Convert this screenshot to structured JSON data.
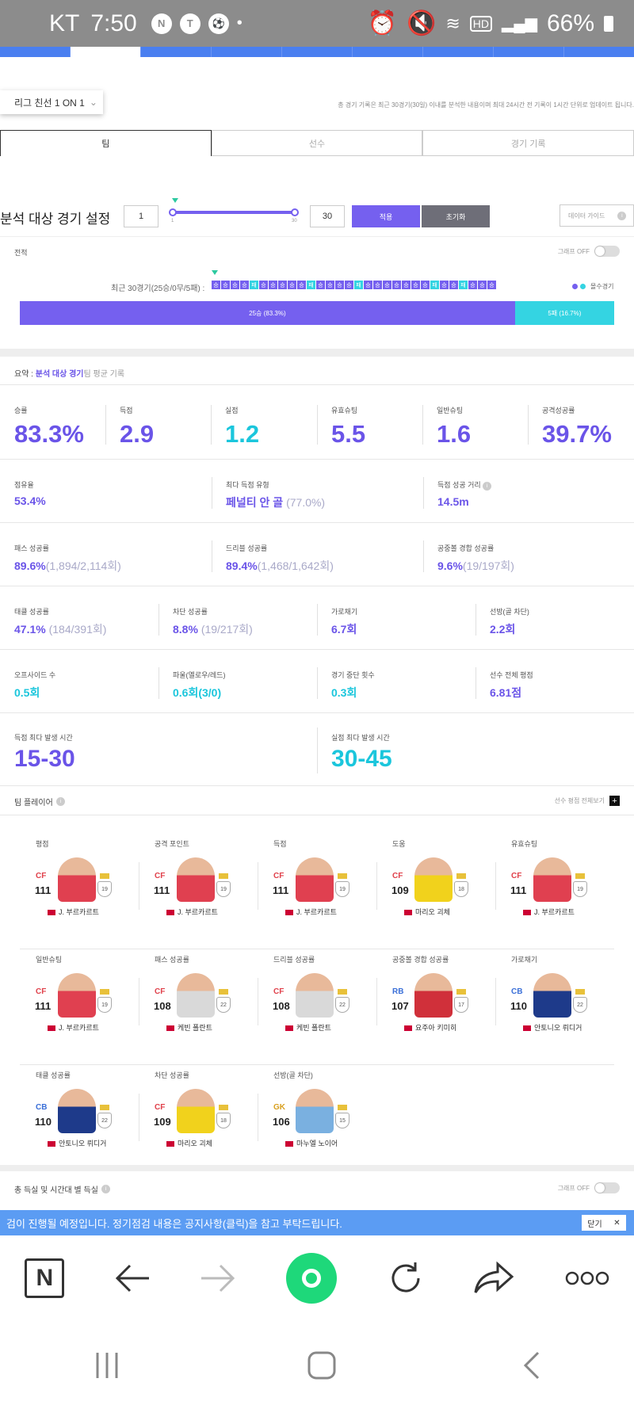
{
  "status_bar": {
    "carrier": "KT",
    "time": "7:50",
    "battery": "66%",
    "icons": [
      "naver-icon",
      "talk-icon",
      "soccer-icon",
      "alarm-icon",
      "mute-icon",
      "wifi-icon",
      "hd-icon",
      "signal-icon",
      "battery-icon"
    ]
  },
  "league_select": {
    "label": "리그 친선 1 ON 1"
  },
  "update_note": "총 경기 기록은 최근 30경기(30일) 이내를 분석한 내용이며 최대 24시간 전 기록이 1시간 단위로 업데이트 됩니다.",
  "tabs": [
    {
      "label": "팀"
    },
    {
      "label": "선수"
    },
    {
      "label": "경기 기록"
    }
  ],
  "settings": {
    "title": "분석 대상 경기 설정",
    "min_value": "1",
    "max_value": "30",
    "slider_min_label": "1",
    "slider_max_label": "30",
    "apply_label": "적용",
    "reset_label": "초기화",
    "guide_label": "데이터 가이드"
  },
  "record": {
    "section_label": "전적",
    "graph_toggle": "그래프 OFF",
    "recent_label": "최근 30경기(25승/0무/5패) :",
    "results": [
      "승",
      "승",
      "승",
      "승",
      "패",
      "승",
      "승",
      "승",
      "승",
      "승",
      "패",
      "승",
      "승",
      "승",
      "승",
      "패",
      "승",
      "승",
      "승",
      "승",
      "승",
      "승",
      "승",
      "패",
      "승",
      "승",
      "패",
      "승",
      "승",
      "승"
    ],
    "win_label": "25승 (83.3%)",
    "loss_label": "5패 (16.7%)",
    "legend": "몰수경기",
    "win_fraction": 0.833,
    "colors": {
      "win": "#7560ef",
      "loss": "#34d4e2"
    }
  },
  "summary": {
    "prefix": "요약 :",
    "highlight": "분석 대상 경기",
    "suffix": "팀 평균 기록"
  },
  "top_stats": [
    {
      "label": "승률",
      "value": "83.3%"
    },
    {
      "label": "득점",
      "value": "2.9"
    },
    {
      "label": "실점",
      "value": "1.2"
    },
    {
      "label": "유효슈팅",
      "value": "5.5"
    },
    {
      "label": "일반슈팅",
      "value": "1.6"
    },
    {
      "label": "공격성공률",
      "value": "39.7%"
    }
  ],
  "stats_row1": [
    {
      "label": "점유율",
      "value": "53.4%",
      "sub": ""
    },
    {
      "label": "최다 득점 유형",
      "value": "페널티 안 골",
      "sub": "(77.0%)"
    },
    {
      "label": "득점 성공 거리",
      "value": "14.5m",
      "sub": ""
    }
  ],
  "stats_row2": [
    {
      "label": "패스 성공률",
      "value": "89.6%",
      "sub": "(1,894/2,114회)"
    },
    {
      "label": "드리블 성공률",
      "value": "89.4%",
      "sub": "(1,468/1,642회)"
    },
    {
      "label": "공중볼 경합 성공률",
      "value": "9.6%",
      "sub": "(19/197회)"
    }
  ],
  "stats_row3": [
    {
      "label": "태클 성공률",
      "value": "47.1%",
      "sub": "(184/391회)"
    },
    {
      "label": "차단 성공률",
      "value": "8.8%",
      "sub": "(19/217회)"
    },
    {
      "label": "가로채기",
      "value": "6.7회",
      "sub": ""
    },
    {
      "label": "선방(골 차단)",
      "value": "2.2회",
      "sub": ""
    }
  ],
  "stats_row4": [
    {
      "label": "오프사이드 수",
      "value": "0.5회"
    },
    {
      "label": "파울(옐로우/레드)",
      "value": "0.6회(3/0)"
    },
    {
      "label": "경기 중단 횟수",
      "value": "0.3회"
    },
    {
      "label": "선수 전체 평점",
      "value": "6.81점"
    }
  ],
  "time_stats": [
    {
      "label": "득점 최다 발생 시간",
      "value": "15-30"
    },
    {
      "label": "실점 최다 발생 시간",
      "value": "30-45"
    }
  ],
  "top_players": {
    "title": "팀 플레이어",
    "view_all": "선수 평점 전체보기",
    "rows": [
      [
        {
          "title": "평점",
          "pos": "CF",
          "ovr": "111",
          "lvl": "19",
          "name": "J. 부르카르트",
          "pos_color": "#e0404a",
          "kit": "#e04050"
        },
        {
          "title": "공격 포인트",
          "pos": "CF",
          "ovr": "111",
          "lvl": "19",
          "name": "J. 부르카르트",
          "pos_color": "#e0404a",
          "kit": "#e04050"
        },
        {
          "title": "득점",
          "pos": "CF",
          "ovr": "111",
          "lvl": "19",
          "name": "J. 부르카르트",
          "pos_color": "#e0404a",
          "kit": "#e04050"
        },
        {
          "title": "도움",
          "pos": "CF",
          "ovr": "109",
          "lvl": "18",
          "name": "마리오 괴체",
          "pos_color": "#e0404a",
          "kit": "#f1d21c"
        },
        {
          "title": "유효슈팅",
          "pos": "CF",
          "ovr": "111",
          "lvl": "19",
          "name": "J. 부르카르트",
          "pos_color": "#e0404a",
          "kit": "#e04050"
        }
      ],
      [
        {
          "title": "일반슈팅",
          "pos": "CF",
          "ovr": "111",
          "lvl": "19",
          "name": "J. 부르카르트",
          "pos_color": "#e0404a",
          "kit": "#e04050"
        },
        {
          "title": "패스 성공률",
          "pos": "CF",
          "ovr": "108",
          "lvl": "22",
          "name": "케빈 폴란트",
          "pos_color": "#e0404a",
          "kit": "#d9d9d9"
        },
        {
          "title": "드리블 성공률",
          "pos": "CF",
          "ovr": "108",
          "lvl": "22",
          "name": "케빈 폴란트",
          "pos_color": "#e0404a",
          "kit": "#d9d9d9"
        },
        {
          "title": "공중볼 경합 성공률",
          "pos": "RB",
          "ovr": "107",
          "lvl": "17",
          "name": "요주아 키미히",
          "pos_color": "#3a6fd8",
          "kit": "#d0303a"
        },
        {
          "title": "가로채기",
          "pos": "CB",
          "ovr": "110",
          "lvl": "22",
          "name": "안토니오 뤼디거",
          "pos_color": "#3a6fd8",
          "kit": "#1e3a8a"
        }
      ],
      [
        {
          "title": "태클 성공률",
          "pos": "CB",
          "ovr": "110",
          "lvl": "22",
          "name": "안토니오 뤼디거",
          "pos_color": "#3a6fd8",
          "kit": "#1e3a8a"
        },
        {
          "title": "차단 성공률",
          "pos": "CF",
          "ovr": "109",
          "lvl": "18",
          "name": "마리오 괴체",
          "pos_color": "#e0404a",
          "kit": "#f1d21c"
        },
        {
          "title": "선방(골 차단)",
          "pos": "GK",
          "ovr": "106",
          "lvl": "15",
          "name": "마누엘 노이어",
          "pos_color": "#d8a020",
          "kit": "#7ab0e0"
        }
      ]
    ]
  },
  "goals_section": {
    "title": "총 득실 및 시간대 별 득실",
    "graph_toggle": "그래프 OFF"
  },
  "banner": {
    "text": "검이 진행될 예정입니다. 정기점검 내용은 공지사항(클릭)을 참고 부탁드립니다.",
    "close_label": "닫기"
  },
  "browser_nav": {
    "logo": "N"
  }
}
